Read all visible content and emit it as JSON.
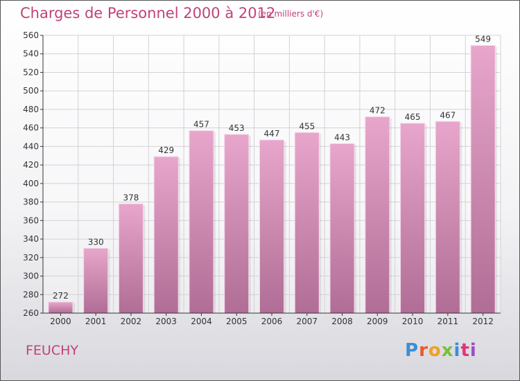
{
  "header": {
    "title": "Charges de Personnel 2000 à 2012",
    "subtitle": "(en milliers d'€)"
  },
  "footer": {
    "city": "FEUCHY",
    "logo": "Proxiti",
    "logo_colors": [
      "#3a8fd6",
      "#e85a2a",
      "#f0a020",
      "#7bbf3a",
      "#3a8fd6",
      "#e0357a",
      "#9a4fc0"
    ]
  },
  "colors": {
    "bar_top": "#e8a6cc",
    "bar_bottom": "#b06d95",
    "text": "#c0427a",
    "axis": "#333333"
  },
  "chart_data": {
    "type": "bar",
    "categories": [
      "2000",
      "2001",
      "2002",
      "2003",
      "2004",
      "2005",
      "2006",
      "2007",
      "2008",
      "2009",
      "2010",
      "2011",
      "2012"
    ],
    "values": [
      272,
      330,
      378,
      429,
      457,
      453,
      447,
      455,
      443,
      472,
      465,
      467,
      549
    ],
    "ylim": [
      260,
      560
    ],
    "yticks": [
      260,
      280,
      300,
      320,
      340,
      360,
      380,
      400,
      420,
      440,
      460,
      480,
      500,
      520,
      540,
      560
    ],
    "grid": true
  }
}
